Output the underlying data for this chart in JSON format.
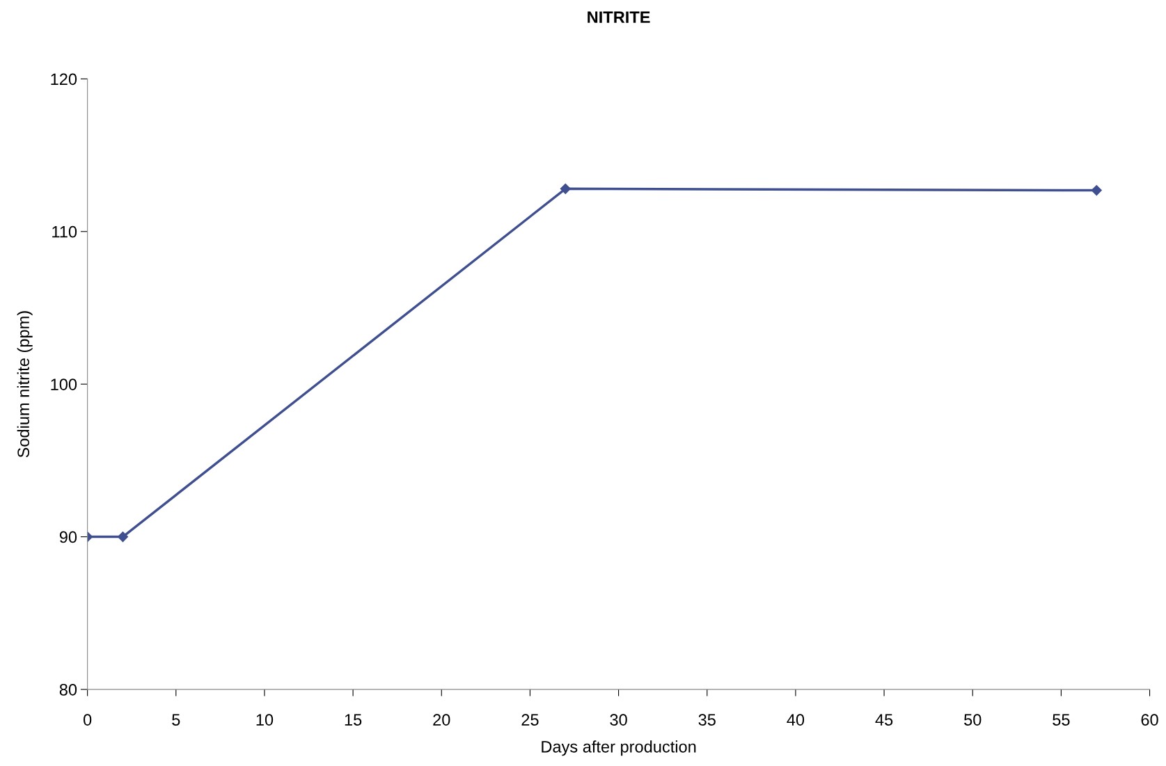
{
  "chart_data": {
    "type": "line",
    "title": "NITRITE",
    "xlabel": "Days after production",
    "ylabel": "Sodium nitrite (ppm)",
    "x": [
      0,
      2,
      27,
      57
    ],
    "series": [
      {
        "color": "#3f4f8f",
        "values": [
          90,
          90,
          112.8,
          112.7
        ]
      }
    ],
    "xlim": [
      0,
      60
    ],
    "xticks": [
      0,
      5,
      10,
      15,
      20,
      25,
      30,
      35,
      40,
      45,
      50,
      55,
      60
    ],
    "ylim": [
      80,
      120
    ],
    "yticks": [
      80,
      90,
      100,
      110,
      120
    ],
    "grid": false,
    "marker": "diamond",
    "line_style": "solid"
  }
}
